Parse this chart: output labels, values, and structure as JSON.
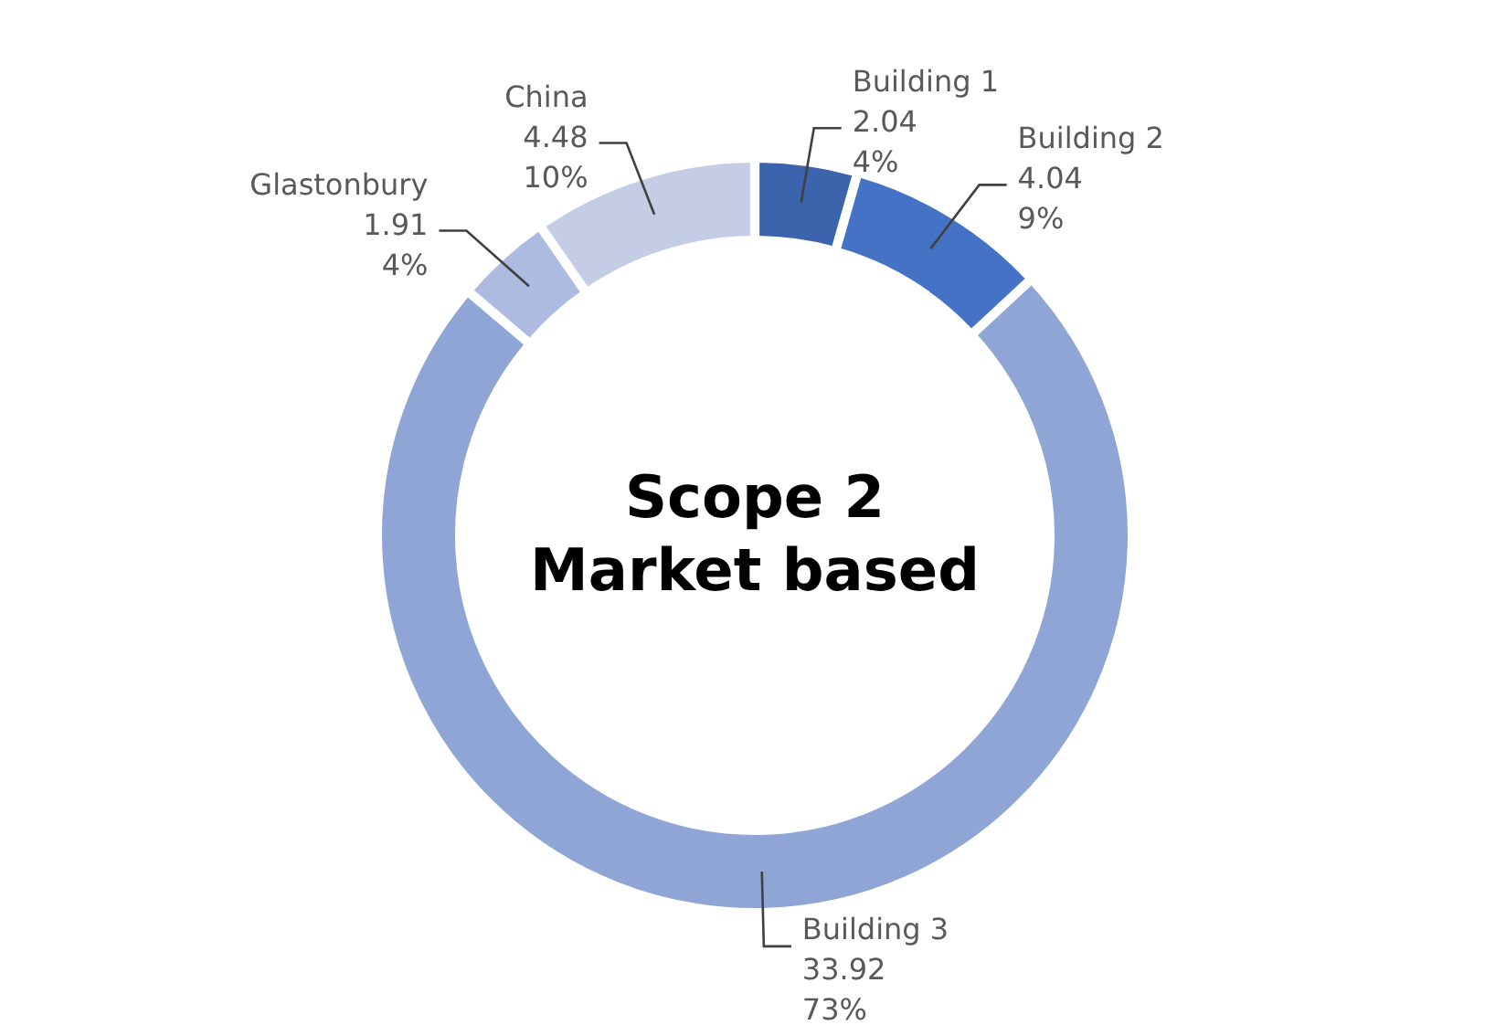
{
  "chart_data": {
    "type": "donut",
    "title": "Scope 2\nMarket based",
    "categories": [
      "Building 1",
      "Building 2",
      "Building 3",
      "Glastonbury",
      "China"
    ],
    "values": [
      2.04,
      4.04,
      33.92,
      1.91,
      4.48
    ],
    "value_labels": [
      "2.04\n4%",
      "4.04\n9%",
      "33.92\n73%",
      "1.91\n4%",
      "4.48\n10%"
    ],
    "colors": [
      "#3b64ad",
      "#4472c4",
      "#8fa5d6",
      "#adbbe0",
      "#c5cde6"
    ]
  }
}
